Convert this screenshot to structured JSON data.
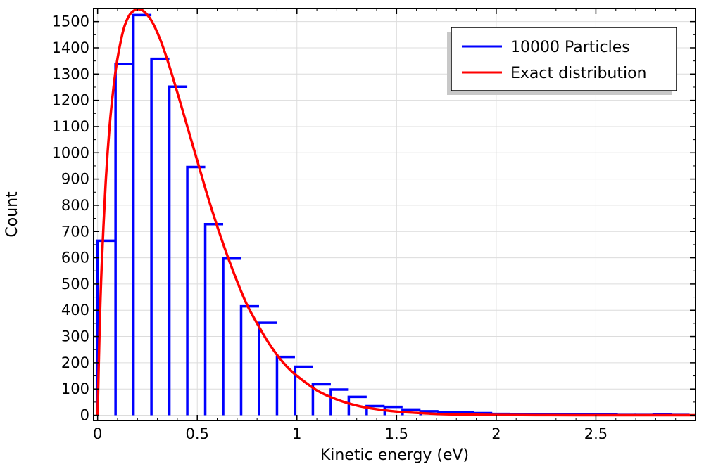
{
  "chart_data": {
    "type": "bar",
    "title": "",
    "xlabel": "Kinetic energy (eV)",
    "ylabel": "Count",
    "xlim": [
      -0.02,
      3.0
    ],
    "ylim": [
      -20,
      1550
    ],
    "x_ticks": [
      {
        "value": 0,
        "label": "0"
      },
      {
        "value": 0.5,
        "label": "0.5"
      },
      {
        "value": 1,
        "label": "1"
      },
      {
        "value": 1.5,
        "label": "1.5"
      },
      {
        "value": 2,
        "label": "2"
      },
      {
        "value": 2.5,
        "label": "2.5"
      }
    ],
    "y_ticks": [
      0,
      100,
      200,
      300,
      400,
      500,
      600,
      700,
      800,
      900,
      1000,
      1100,
      1200,
      1300,
      1400,
      1500
    ],
    "grid": true,
    "legend_position": "top-right",
    "series": [
      {
        "name": "10000 Particles",
        "kind": "step-histogram",
        "color": "#0000ff",
        "bin_width": 0.09,
        "bin_start": 0,
        "values": [
          665,
          1338,
          1525,
          1358,
          1252,
          946,
          728,
          597,
          415,
          352,
          222,
          185,
          118,
          98,
          70,
          35,
          32,
          22,
          15,
          12,
          10,
          8,
          5,
          4,
          3,
          3,
          2,
          3,
          2,
          1,
          1,
          3,
          1
        ]
      },
      {
        "name": "Exact distribution",
        "kind": "curve",
        "color": "#ff0000",
        "x": [
          0,
          0.01,
          0.02,
          0.04,
          0.06,
          0.08,
          0.1,
          0.13,
          0.16,
          0.19,
          0.22,
          0.25,
          0.28,
          0.32,
          0.36,
          0.4,
          0.45,
          0.5,
          0.55,
          0.6,
          0.65,
          0.7,
          0.75,
          0.8,
          0.85,
          0.9,
          0.95,
          1.0,
          1.1,
          1.2,
          1.3,
          1.4,
          1.5,
          1.6,
          1.7,
          1.8,
          1.9,
          2.0,
          2.2,
          2.4,
          2.6,
          2.8,
          3.0
        ],
        "y": [
          0,
          330,
          560,
          880,
          1100,
          1250,
          1360,
          1470,
          1525,
          1545,
          1545,
          1525,
          1490,
          1420,
          1330,
          1230,
          1100,
          970,
          840,
          720,
          610,
          510,
          420,
          350,
          285,
          230,
          185,
          150,
          95,
          60,
          37,
          23,
          14,
          9,
          5,
          3,
          2,
          1,
          0.5,
          0,
          0,
          0,
          0
        ]
      }
    ]
  }
}
